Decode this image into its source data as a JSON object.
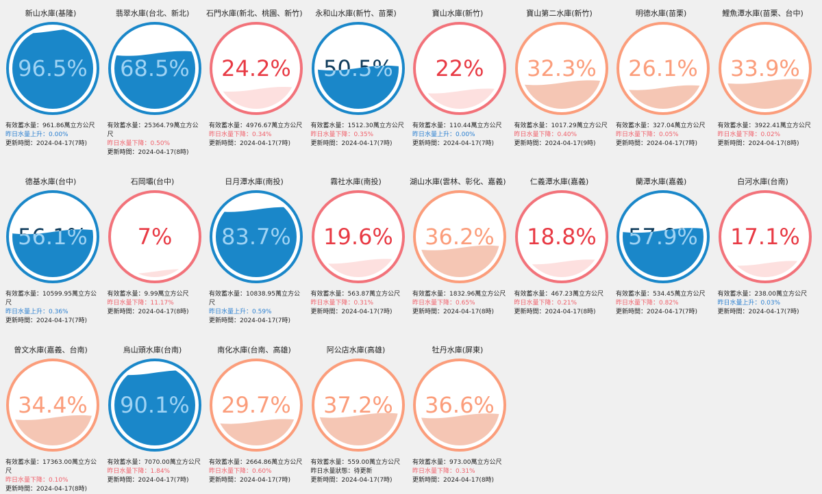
{
  "labels": {
    "capacity_prefix": "有效蓄水量：",
    "capacity_unit": "萬立方公尺",
    "change_up": "昨日水量上升：",
    "change_down": "昨日水量下降：",
    "change_status": "昨日水量狀態：",
    "update_prefix": "更新時間：",
    "pending": "待更新"
  },
  "reservoirs": [
    {
      "name": "新山水庫(基隆)",
      "percent": 96.5,
      "percent_label": "96.5%",
      "level": "high",
      "capacity": "961.86",
      "trend": "up",
      "change": "0.00%",
      "updated": "2024-04-17(7時)"
    },
    {
      "name": "翡翠水庫(台北、新北)",
      "percent": 68.5,
      "percent_label": "68.5%",
      "level": "high",
      "capacity": "25364.79",
      "trend": "down",
      "change": "0.50%",
      "updated": "2024-04-17(8時)"
    },
    {
      "name": "石門水庫(新北、桃園、新竹)",
      "percent": 24.2,
      "percent_label": "24.2%",
      "level": "low",
      "capacity": "4976.67",
      "trend": "down",
      "change": "0.34%",
      "updated": "2024-04-17(7時)"
    },
    {
      "name": "永和山水庫(新竹、苗栗)",
      "percent": 50.5,
      "percent_label": "50.5%",
      "level": "high",
      "capacity": "1512.30",
      "trend": "down",
      "change": "0.35%",
      "updated": "2024-04-17(7時)"
    },
    {
      "name": "寶山水庫(新竹)",
      "percent": 22,
      "percent_label": "22%",
      "level": "low",
      "capacity": "110.44",
      "trend": "up",
      "change": "0.00%",
      "updated": "2024-04-17(7時)"
    },
    {
      "name": "寶山第二水庫(新竹)",
      "percent": 32.3,
      "percent_label": "32.3%",
      "level": "mid",
      "capacity": "1017.29",
      "trend": "down",
      "change": "0.40%",
      "updated": "2024-04-17(9時)"
    },
    {
      "name": "明德水庫(苗栗)",
      "percent": 26.1,
      "percent_label": "26.1%",
      "level": "mid",
      "capacity": "327.04",
      "trend": "down",
      "change": "0.05%",
      "updated": "2024-04-17(7時)"
    },
    {
      "name": "鯉魚潭水庫(苗栗、台中)",
      "percent": 33.9,
      "percent_label": "33.9%",
      "level": "mid",
      "capacity": "3922.41",
      "trend": "down",
      "change": "0.02%",
      "updated": "2024-04-17(8時)"
    },
    {
      "name": "德基水庫(台中)",
      "percent": 56.1,
      "percent_label": "56.1%",
      "level": "high",
      "capacity": "10599.95",
      "trend": "up",
      "change": "0.36%",
      "updated": "2024-04-17(7時)"
    },
    {
      "name": "石岡壩(台中)",
      "percent": 7,
      "percent_label": "7%",
      "level": "low",
      "capacity": "9.99",
      "trend": "down",
      "change": "11.17%",
      "updated": "2024-04-17(8時)"
    },
    {
      "name": "日月潭水庫(南投)",
      "percent": 83.7,
      "percent_label": "83.7%",
      "level": "high",
      "capacity": "10838.95",
      "trend": "up",
      "change": "0.59%",
      "updated": "2024-04-17(7時)"
    },
    {
      "name": "霧社水庫(南投)",
      "percent": 19.6,
      "percent_label": "19.6%",
      "level": "low",
      "capacity": "563.87",
      "trend": "down",
      "change": "0.31%",
      "updated": "2024-04-17(7時)"
    },
    {
      "name": "湖山水庫(雲林、彰化、嘉義)",
      "percent": 36.2,
      "percent_label": "36.2%",
      "level": "mid",
      "capacity": "1832.96",
      "trend": "down",
      "change": "0.65%",
      "updated": "2024-04-17(8時)"
    },
    {
      "name": "仁義潭水庫(嘉義)",
      "percent": 18.8,
      "percent_label": "18.8%",
      "level": "low",
      "capacity": "467.23",
      "trend": "down",
      "change": "0.21%",
      "updated": "2024-04-17(8時)"
    },
    {
      "name": "蘭潭水庫(嘉義)",
      "percent": 57.9,
      "percent_label": "57.9%",
      "level": "high",
      "capacity": "534.45",
      "trend": "down",
      "change": "0.82%",
      "updated": "2024-04-17(7時)"
    },
    {
      "name": "白河水庫(台南)",
      "percent": 17.1,
      "percent_label": "17.1%",
      "level": "low",
      "capacity": "238.00",
      "trend": "up",
      "change": "0.03%",
      "updated": "2024-04-17(7時)"
    },
    {
      "name": "曾文水庫(嘉義、台南)",
      "percent": 34.4,
      "percent_label": "34.4%",
      "level": "mid",
      "capacity": "17363.00",
      "trend": "down",
      "change": "0.10%",
      "updated": "2024-04-17(8時)"
    },
    {
      "name": "烏山頭水庫(台南)",
      "percent": 90.1,
      "percent_label": "90.1%",
      "level": "high",
      "capacity": "7070.00",
      "trend": "down",
      "change": "1.84%",
      "updated": "2024-04-17(7時)"
    },
    {
      "name": "南化水庫(台南、高雄)",
      "percent": 29.7,
      "percent_label": "29.7%",
      "level": "mid",
      "capacity": "2664.86",
      "trend": "down",
      "change": "0.60%",
      "updated": "2024-04-17(7時)"
    },
    {
      "name": "阿公店水庫(高雄)",
      "percent": 37.2,
      "percent_label": "37.2%",
      "level": "mid",
      "capacity": "559.00",
      "trend": "status",
      "change": "待更新",
      "updated": "2024-04-17(7時)"
    },
    {
      "name": "牡丹水庫(屏東)",
      "percent": 36.6,
      "percent_label": "36.6%",
      "level": "mid",
      "capacity": "973.00",
      "trend": "down",
      "change": "0.31%",
      "updated": "2024-04-17(8時)"
    }
  ],
  "colors": {
    "high": {
      "ring": "#1a87c9",
      "fill": "#1a87c9",
      "text_over": "#9fd3f4",
      "text_under": "#0d3a5a"
    },
    "mid": {
      "ring": "#fb9d7b",
      "fill": "#f5c6b4",
      "text_over": "#fb9d7b",
      "text_under": "#fb9d7b"
    },
    "low": {
      "ring": "#f2727a",
      "fill": "#fde0df",
      "text_over": "#e83a44",
      "text_under": "#e83a44"
    }
  }
}
